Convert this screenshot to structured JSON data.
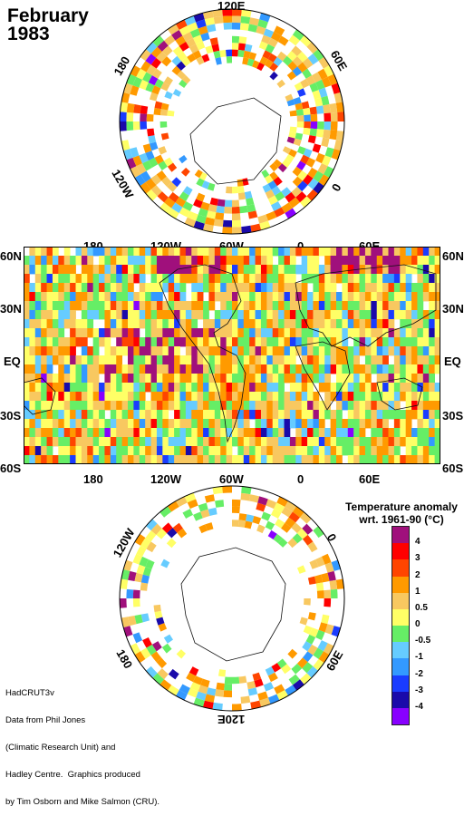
{
  "title": {
    "month": "February",
    "year": "1983"
  },
  "north_polar": {
    "labels": {
      "top": "120E",
      "right": "60E",
      "bottom_right": "0",
      "left": "180",
      "bottom_left": "120W"
    }
  },
  "world_map": {
    "top_lon_labels": [
      "180",
      "120W",
      "60W",
      "0",
      "60E"
    ],
    "bottom_lon_labels": [
      "180",
      "120W",
      "60W",
      "0",
      "60E"
    ],
    "left_lat_labels": [
      "60N",
      "30N",
      "EQ",
      "30S",
      "60S"
    ],
    "right_lat_labels": [
      "60N",
      "30N",
      "EQ",
      "30S",
      "60S"
    ]
  },
  "south_polar": {
    "labels": {
      "top_right": "0",
      "left_top": "120W",
      "left_bottom": "180",
      "right_bottom": "60E",
      "bottom": "120E"
    }
  },
  "legend": {
    "title_line1": "Temperature anomaly",
    "title_line2": "wrt. 1961-90  (°C)",
    "ticks": [
      "4",
      "3",
      "2",
      "1",
      "0.5",
      "0",
      "-0.5",
      "-1",
      "-2",
      "-3",
      "-4"
    ],
    "colors": [
      "#a0107c",
      "#ff0000",
      "#ff4500",
      "#ff9a00",
      "#f8c860",
      "#ffff66",
      "#66ee66",
      "#66ccff",
      "#3399ff",
      "#1a3cff",
      "#1a0aaa",
      "#8800ff"
    ]
  },
  "credit": {
    "lines": [
      "HadCRUT3v",
      "Data from Phil Jones",
      "(Climatic Research Unit) and",
      "Hadley Centre.  Graphics produced",
      "by Tim Osborn and Mike Salmon (CRU)."
    ]
  }
}
